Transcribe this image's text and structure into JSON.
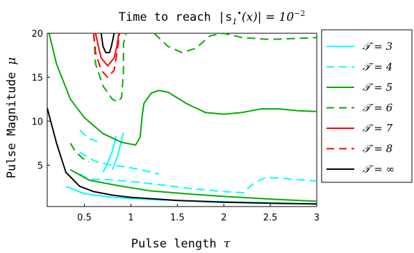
{
  "chart_data": {
    "type": "line",
    "title_text": "Time to reach |s",
    "title_sub": "1",
    "title_sup": "•",
    "title_mid": "(x)| = 10",
    "title_exp": "−2",
    "xlabel_text": "Pulse length ",
    "xlabel_sym": "τ",
    "ylabel_text": "Pulse Magnitude ",
    "ylabel_sym": "μ",
    "xlim": [
      0.1,
      3.0
    ],
    "ylim": [
      0.3,
      20.0
    ],
    "xticks": [
      {
        "v": 0.5,
        "label": "0.5"
      },
      {
        "v": 1.0,
        "label": "1"
      },
      {
        "v": 1.5,
        "label": "1.5"
      },
      {
        "v": 2.0,
        "label": "2"
      },
      {
        "v": 2.5,
        "label": "2.5"
      },
      {
        "v": 3.0,
        "label": "3"
      }
    ],
    "yticks": [
      {
        "v": 5,
        "label": "5"
      },
      {
        "v": 10,
        "label": "10"
      },
      {
        "v": 15,
        "label": "15"
      },
      {
        "v": 20,
        "label": "20"
      }
    ],
    "legend_position": "right",
    "grid": false,
    "series": [
      {
        "name": "𝒯 = 3",
        "color": "#00ffff",
        "style": "solid",
        "paths": [
          [
            [
              0.8,
              4.5
            ],
            [
              0.84,
              5.5
            ],
            [
              0.88,
              7.0
            ],
            [
              0.92,
              8.7
            ]
          ],
          [
            [
              0.7,
              4.2
            ],
            [
              0.74,
              5.0
            ],
            [
              0.8,
              6.6
            ],
            [
              0.84,
              8.3
            ]
          ],
          [
            [
              0.3,
              2.6
            ],
            [
              0.5,
              1.75
            ],
            [
              0.8,
              1.35
            ],
            [
              1.2,
              1.1
            ],
            [
              1.6,
              0.95
            ],
            [
              2.0,
              0.85
            ],
            [
              2.5,
              0.72
            ],
            [
              3.0,
              0.6
            ]
          ]
        ]
      },
      {
        "name": "𝒯 = 4",
        "color": "#00ffff",
        "style": "dashed",
        "paths": [
          [
            [
              0.45,
              4.0
            ],
            [
              0.55,
              3.4
            ],
            [
              0.7,
              3.4
            ],
            [
              1.0,
              3.15
            ],
            [
              1.3,
              2.8
            ],
            [
              1.6,
              2.4
            ],
            [
              2.0,
              2.0
            ],
            [
              2.25,
              1.85
            ]
          ],
          [
            [
              2.25,
              2.3
            ],
            [
              2.33,
              3.0
            ],
            [
              2.45,
              3.6
            ],
            [
              2.65,
              3.5
            ],
            [
              3.0,
              3.2
            ]
          ],
          [
            [
              0.45,
              6.5
            ],
            [
              0.55,
              5.8
            ],
            [
              0.65,
              5.3
            ],
            [
              0.8,
              5.0
            ],
            [
              0.95,
              4.8
            ],
            [
              1.1,
              4.5
            ],
            [
              1.3,
              4.0
            ]
          ],
          [
            [
              0.45,
              9.0
            ],
            [
              0.55,
              8.0
            ],
            [
              0.62,
              7.8
            ],
            [
              0.65,
              7.5
            ]
          ]
        ]
      },
      {
        "name": "𝒯 = 5",
        "color": "#00aa00",
        "style": "solid",
        "paths": [
          [
            [
              0.12,
              20.0
            ],
            [
              0.2,
              16.5
            ],
            [
              0.35,
              12.5
            ],
            [
              0.5,
              10.4
            ],
            [
              0.7,
              8.6
            ],
            [
              0.9,
              7.6
            ],
            [
              1.05,
              7.3
            ],
            [
              1.1,
              8.2
            ],
            [
              1.12,
              10.5
            ],
            [
              1.14,
              12.0
            ],
            [
              1.22,
              13.2
            ],
            [
              1.3,
              13.5
            ],
            [
              1.4,
              13.3
            ],
            [
              1.6,
              12.0
            ],
            [
              1.8,
              11.0
            ],
            [
              2.0,
              10.8
            ],
            [
              2.2,
              11.0
            ],
            [
              2.4,
              11.4
            ],
            [
              2.6,
              11.4
            ],
            [
              2.8,
              11.2
            ],
            [
              3.0,
              11.1
            ]
          ],
          [
            [
              0.35,
              4.5
            ],
            [
              0.55,
              3.3
            ],
            [
              0.85,
              2.7
            ],
            [
              1.2,
              2.1
            ],
            [
              1.6,
              1.75
            ],
            [
              2.0,
              1.45
            ],
            [
              2.5,
              1.15
            ],
            [
              3.0,
              0.9
            ]
          ]
        ]
      },
      {
        "name": "𝒯 = 6",
        "color": "#00aa00",
        "style": "dashed",
        "paths": [
          [
            [
              0.35,
              7.5
            ],
            [
              0.4,
              6.6
            ],
            [
              0.48,
              5.8
            ],
            [
              0.55,
              5.4
            ]
          ],
          [
            [
              0.6,
              20.0
            ],
            [
              0.62,
              16.5
            ],
            [
              0.7,
              14.0
            ],
            [
              0.8,
              12.5
            ],
            [
              0.86,
              12.2
            ],
            [
              0.9,
              12.7
            ],
            [
              0.92,
              15.5
            ],
            [
              0.92,
              18.8
            ],
            [
              0.95,
              20.0
            ]
          ],
          [
            [
              1.25,
              20.0
            ],
            [
              1.4,
              18.5
            ],
            [
              1.55,
              17.8
            ],
            [
              1.7,
              18.3
            ],
            [
              1.85,
              19.7
            ],
            [
              2.0,
              20.0
            ],
            [
              2.2,
              19.5
            ],
            [
              2.5,
              19.3
            ],
            [
              3.0,
              19.5
            ]
          ]
        ]
      },
      {
        "name": "𝒯 = 7",
        "color": "#ff0000",
        "style": "solid",
        "paths": [
          [
            [
              0.62,
              20.0
            ],
            [
              0.65,
              18.5
            ],
            [
              0.68,
              17.2
            ],
            [
              0.75,
              16.3
            ],
            [
              0.82,
              17.2
            ],
            [
              0.85,
              18.5
            ],
            [
              0.87,
              20.0
            ]
          ]
        ]
      },
      {
        "name": "𝒯 = 8",
        "color": "#ff0000",
        "style": "dashed",
        "paths": [
          [
            [
              0.6,
              20.0
            ],
            [
              0.62,
              17.8
            ],
            [
              0.68,
              15.8
            ],
            [
              0.75,
              15.0
            ],
            [
              0.82,
              15.8
            ],
            [
              0.86,
              18.5
            ],
            [
              0.88,
              20.0
            ]
          ]
        ]
      },
      {
        "name": "𝒯 = ∞",
        "color": "#000000",
        "style": "solid",
        "paths": [
          [
            [
              0.1,
              11.5
            ],
            [
              0.2,
              7.5
            ],
            [
              0.3,
              4.2
            ],
            [
              0.45,
              2.6
            ],
            [
              0.6,
              2.0
            ],
            [
              0.8,
              1.6
            ],
            [
              1.0,
              1.35
            ],
            [
              1.5,
              1.0
            ],
            [
              2.0,
              0.8
            ],
            [
              2.5,
              0.68
            ],
            [
              3.0,
              0.6
            ]
          ],
          [
            [
              0.68,
              20.0
            ],
            [
              0.7,
              18.5
            ],
            [
              0.73,
              17.8
            ],
            [
              0.77,
              17.8
            ],
            [
              0.79,
              18.5
            ],
            [
              0.82,
              20.0
            ]
          ]
        ]
      }
    ]
  }
}
